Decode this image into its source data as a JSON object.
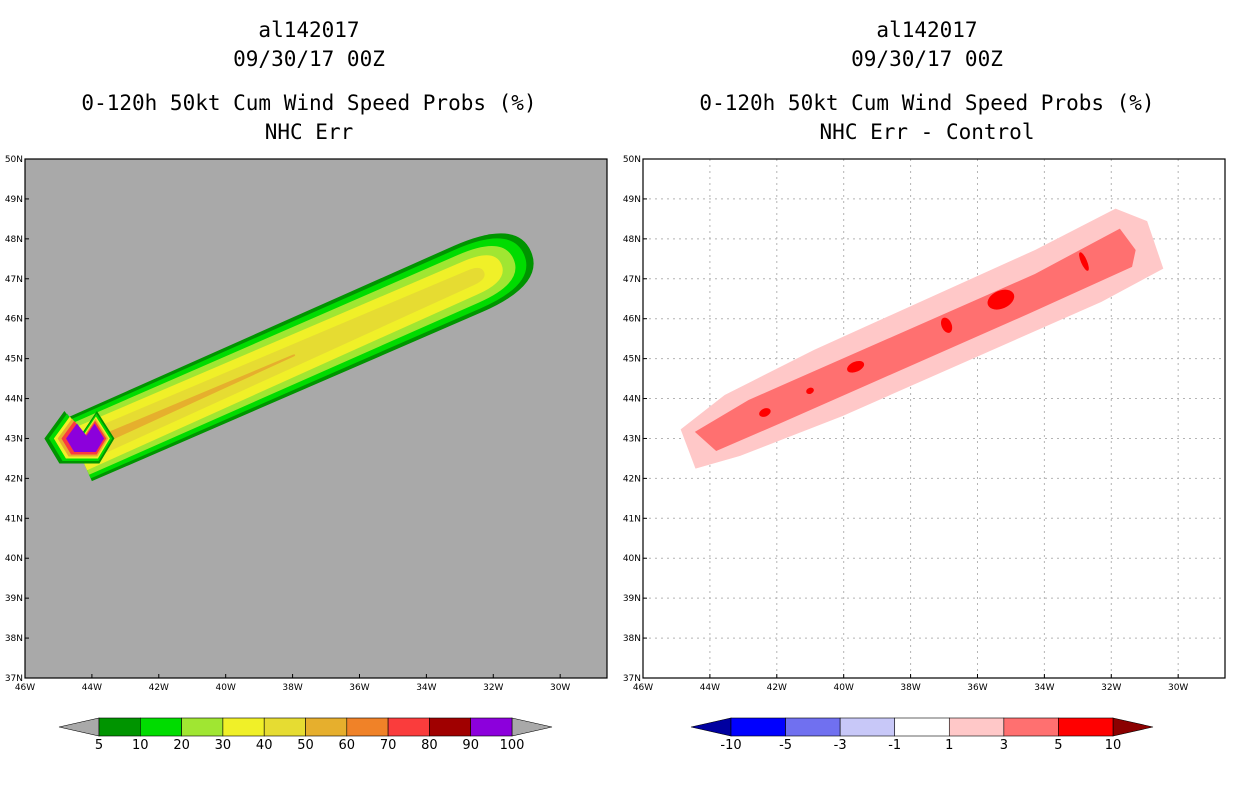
{
  "colors": {
    "land_gray": "#a9a9a9",
    "prob_scale": [
      "#009400",
      "#00dc00",
      "#a0e632",
      "#f0f028",
      "#e6dc32",
      "#e6af2d",
      "#f08228",
      "#fa3c3c",
      "#a00000",
      "#8c00dc"
    ],
    "diff_scale": [
      "#0000a0",
      "#0000ff",
      "#7070f0",
      "#c8c8f8",
      "#ffffff",
      "#ffc8c8",
      "#ff7070",
      "#ff0000",
      "#8b0000"
    ],
    "prob_under": "#a9a9a9",
    "prob_over": "#a9a9a9"
  },
  "left_panel": {
    "title_line1": "al142017",
    "title_line2": "09/30/17 00Z",
    "title_line3": "0-120h 50kt Cum Wind Speed Probs (%)",
    "title_line4": "NHC Err"
  },
  "right_panel": {
    "title_line1": "al142017",
    "title_line2": "09/30/17 00Z",
    "title_line3": "0-120h 50kt Cum Wind Speed Probs (%)",
    "title_line4": "NHC Err - Control"
  },
  "chart_data": [
    {
      "type": "heatmap",
      "subtype": "filled-contour map",
      "title": "al142017 09/30/17 00Z 0-120h 50kt Cum Wind Speed Probs (%) NHC Err",
      "x_axis": {
        "range": [
          -46,
          -28.6
        ],
        "ticks": [
          -46,
          -44,
          -42,
          -40,
          -38,
          -36,
          -34,
          -32,
          -30
        ],
        "tick_labels": [
          "46W",
          "44W",
          "42W",
          "40W",
          "38W",
          "36W",
          "34W",
          "32W",
          "30W"
        ]
      },
      "y_axis": {
        "range": [
          37,
          50
        ],
        "ticks": [
          37,
          38,
          39,
          40,
          41,
          42,
          43,
          44,
          45,
          46,
          47,
          48,
          49,
          50
        ],
        "tick_labels": [
          "37N",
          "38N",
          "39N",
          "40N",
          "41N",
          "42N",
          "43N",
          "44N",
          "45N",
          "46N",
          "47N",
          "48N",
          "49N",
          "50N"
        ]
      },
      "grid": false,
      "colorbar": {
        "levels": [
          "5",
          "10",
          "20",
          "30",
          "40",
          "50",
          "60",
          "70",
          "80",
          "90",
          "100"
        ]
      },
      "swath": {
        "start": [
          -44.3,
          42.75
        ],
        "end": [
          -32.2,
          47.2
        ],
        "max_category": "90-100"
      }
    },
    {
      "type": "heatmap",
      "subtype": "filled-contour map (difference)",
      "title": "al142017 09/30/17 00Z 0-120h 50kt Cum Wind Speed Probs (%) NHC Err - Control",
      "x_axis": {
        "range": [
          -46,
          -28.6
        ],
        "ticks": [
          -46,
          -44,
          -42,
          -40,
          -38,
          -36,
          -34,
          -32,
          -30
        ],
        "tick_labels": [
          "46W",
          "44W",
          "42W",
          "40W",
          "38W",
          "36W",
          "34W",
          "32W",
          "30W"
        ]
      },
      "y_axis": {
        "range": [
          37,
          50
        ],
        "ticks": [
          37,
          38,
          39,
          40,
          41,
          42,
          43,
          44,
          45,
          46,
          47,
          48,
          49,
          50
        ],
        "tick_labels": [
          "37N",
          "38N",
          "39N",
          "40N",
          "41N",
          "42N",
          "43N",
          "44N",
          "45N",
          "46N",
          "47N",
          "48N",
          "49N",
          "50N"
        ]
      },
      "grid": true,
      "colorbar": {
        "levels": [
          "-10",
          "-5",
          "-3",
          "-1",
          "1",
          "3",
          "5",
          "10"
        ]
      },
      "max_difference_category": "5-10"
    }
  ]
}
